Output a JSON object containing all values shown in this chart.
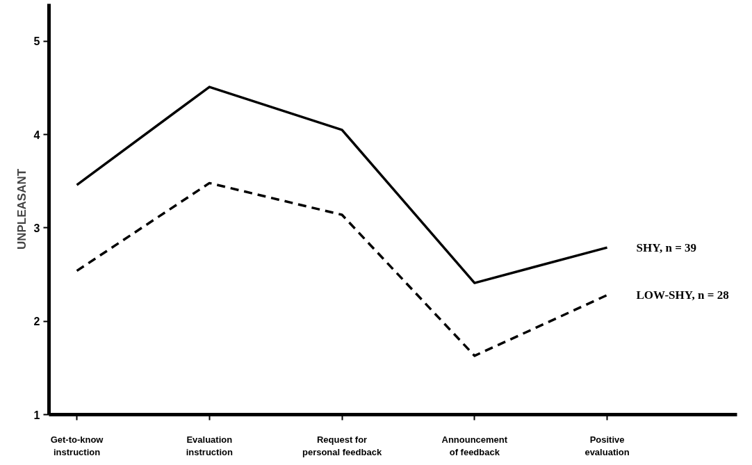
{
  "chart_data": {
    "type": "line",
    "ylabel": "UNPLEASANT",
    "categories": [
      "Get-to-know\ninstruction",
      "Evaluation\ninstruction",
      "Request for\npersonal feedback",
      "Announcement\nof feedback",
      "Positive\nevaluation"
    ],
    "series": [
      {
        "name": "SHY, n = 39",
        "color": "#000000",
        "line_style": "solid",
        "values": [
          3.46,
          4.51,
          4.05,
          2.41,
          2.79
        ]
      },
      {
        "name": "LOW-SHY, n = 28",
        "color": "#000000",
        "line_style": "dashed",
        "values": [
          2.54,
          3.48,
          3.14,
          1.63,
          2.28
        ]
      }
    ],
    "ylim": [
      1,
      5.4
    ],
    "yticks": [
      1,
      2,
      3,
      4,
      5
    ],
    "grid": false,
    "legend": false,
    "marker": "none"
  }
}
